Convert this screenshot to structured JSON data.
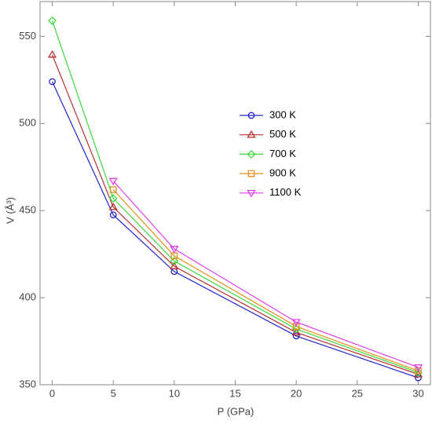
{
  "chart_data": {
    "type": "line",
    "x_label": "P (GPa)",
    "y_label": "V (Å³)",
    "x": [
      0,
      5,
      10,
      20,
      30
    ],
    "series": [
      {
        "name": "300 K",
        "color": "#2424c8",
        "marker": "circle",
        "values": [
          524,
          447.5,
          415,
          378,
          354
        ]
      },
      {
        "name": "500 K",
        "color": "#b83030",
        "marker": "triangle-up",
        "values": [
          539.5,
          452,
          418,
          380,
          356
        ]
      },
      {
        "name": "700 K",
        "color": "#3ed83e",
        "marker": "diamond",
        "values": [
          559,
          457,
          421,
          382,
          357
        ]
      },
      {
        "name": "900 K",
        "color": "#e0901c",
        "marker": "square",
        "values": [
          null,
          462,
          424,
          383.5,
          358
        ]
      },
      {
        "name": "1100 K",
        "color": "#e040e8",
        "marker": "triangle-down",
        "values": [
          null,
          467,
          428,
          386,
          360
        ]
      }
    ],
    "xlim": [
      -1,
      31
    ],
    "ylim": [
      350,
      570
    ],
    "xticks": [
      0,
      5,
      10,
      15,
      20,
      25,
      30
    ],
    "yticks": [
      350,
      400,
      450,
      500,
      550
    ],
    "legend": "right"
  }
}
